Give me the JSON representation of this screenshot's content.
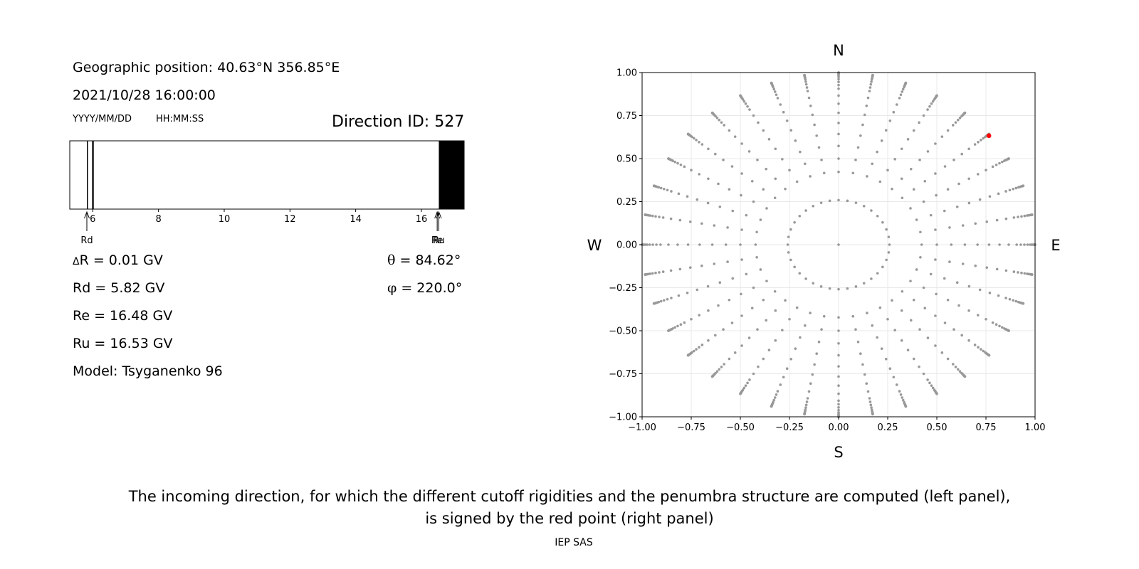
{
  "header": {
    "geo_position": "Geographic position: 40.63°N 356.85°E",
    "datetime": "2021/10/28 16:00:00",
    "date_format": "YYYY/MM/DD",
    "time_format": "HH:MM:SS",
    "direction_id": "Direction ID: 527"
  },
  "stats": {
    "delta_r_symbol": "Δ",
    "delta_r_text": "R = 0.01 GV",
    "rd": "Rd = 5.82 GV",
    "re": "Re = 16.48 GV",
    "ru": "Ru = 16.53 GV",
    "model": "Model: Tsyganenko 96",
    "theta_symbol": "θ",
    "theta_text": " = 84.62°",
    "phi_symbol": "φ",
    "phi_text": " = 220.0°"
  },
  "caption": {
    "line1": "The incoming direction, for which the different cutoff rigidities and the penumbra structure are computed (left panel),",
    "line2": "is signed by the red point (right panel)",
    "credit": "IEP SAS"
  },
  "chart_data": [
    {
      "type": "penumbra_bar",
      "xlim": [
        5.3,
        17.3
      ],
      "xticks": [
        6,
        8,
        10,
        12,
        14,
        16
      ],
      "allowed_color": "#ffffff",
      "forbidden_color": "#000000",
      "forbidden_bands": [
        [
          5.82,
          5.84
        ],
        [
          5.98,
          6.03
        ],
        [
          16.53,
          17.3
        ]
      ],
      "markers": [
        {
          "label": "Rd",
          "value": 5.82
        },
        {
          "label": "Re",
          "value": 16.48
        },
        {
          "label": "Ru",
          "value": 16.53
        }
      ]
    },
    {
      "type": "scatter",
      "xlim": [
        -1,
        1
      ],
      "ylim": [
        -1,
        1
      ],
      "xticks": [
        "−1.00",
        "−0.75",
        "−0.50",
        "−0.25",
        "0.00",
        "0.25",
        "0.50",
        "0.75",
        "1.00"
      ],
      "yticks": [
        "−1.00",
        "−0.75",
        "−0.50",
        "−0.25",
        "0.00",
        "0.25",
        "0.50",
        "0.75",
        "1.00"
      ],
      "compass": {
        "N": "N",
        "S": "S",
        "E": "E",
        "W": "W"
      },
      "grid": true,
      "point_color": "#999999",
      "highlight_color": "#ff0000",
      "grid_pattern": {
        "azimuths": 36,
        "zenith_angles_deg": [
          15,
          25,
          30,
          35,
          40,
          45,
          50,
          55,
          60,
          65,
          68,
          71,
          74,
          77,
          79,
          81,
          83,
          84,
          85,
          86,
          87,
          88,
          89,
          90
        ]
      },
      "highlight": {
        "x": 0.765,
        "y": 0.633
      }
    }
  ]
}
